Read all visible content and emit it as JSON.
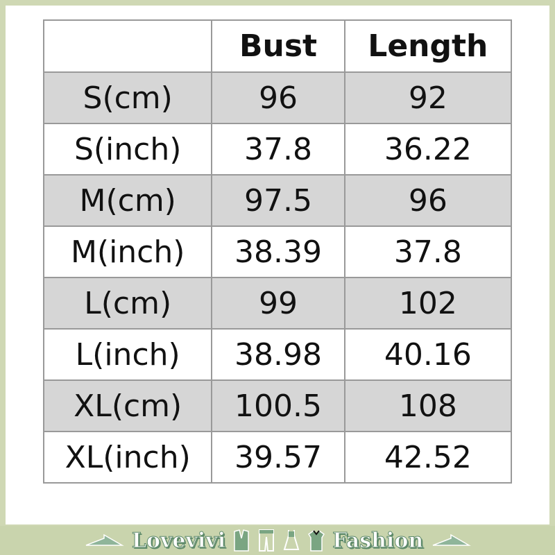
{
  "table": {
    "headers": [
      "",
      "Bust",
      "Length"
    ],
    "rows": [
      [
        "S(cm)",
        "96",
        "92"
      ],
      [
        "S(inch)",
        "37.8",
        "36.22"
      ],
      [
        "M(cm)",
        "97.5",
        "96"
      ],
      [
        "M(inch)",
        "38.39",
        "37.8"
      ],
      [
        "L(cm)",
        "99",
        "102"
      ],
      [
        "L(inch)",
        "38.98",
        "40.16"
      ],
      [
        "XL(cm)",
        "100.5",
        "108"
      ],
      [
        "XL(inch)",
        "39.57",
        "42.52"
      ]
    ]
  },
  "banner": {
    "left_text": "Lovevivi",
    "right_text": "Fashion",
    "icons": [
      "hanger-icon",
      "jacket-icon",
      "pants-icon",
      "dress-icon",
      "shirt-icon",
      "hanger-icon"
    ]
  },
  "colors": {
    "border": "#cfd8b4",
    "shade": "#d6d6d6",
    "brand_green": "#5e8a6a"
  }
}
